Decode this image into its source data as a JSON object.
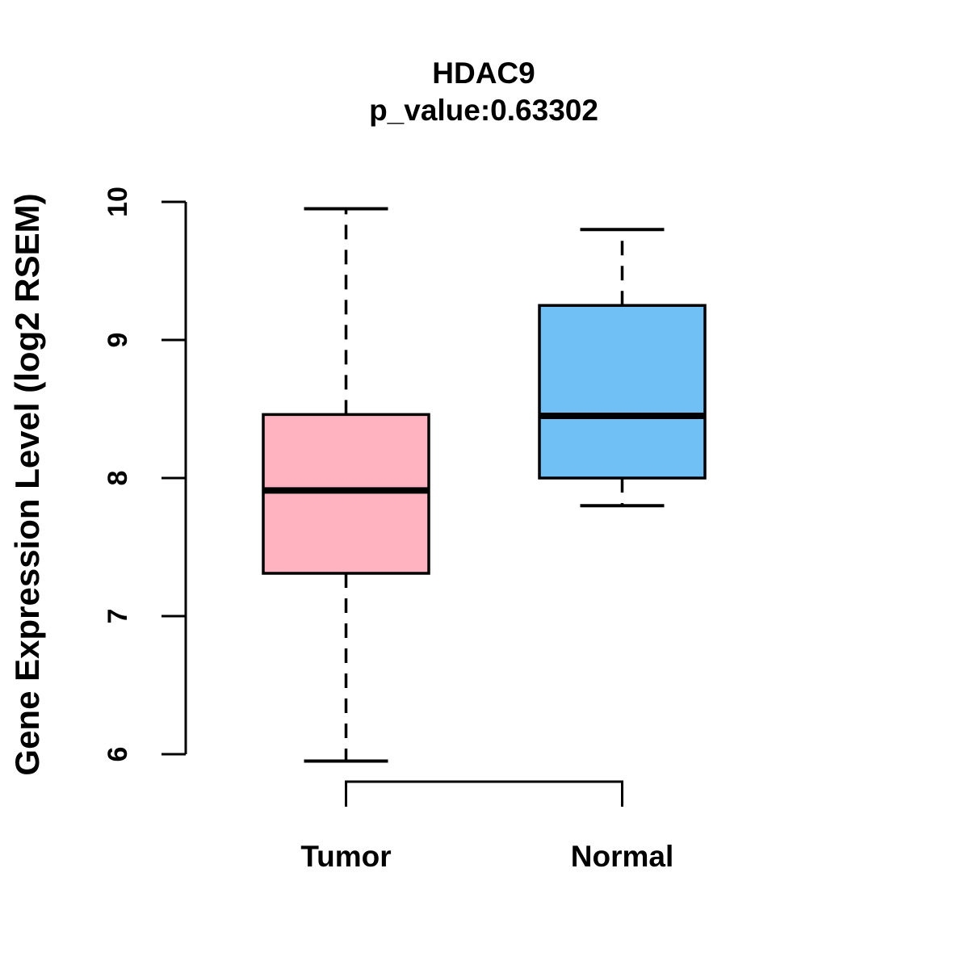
{
  "page": {
    "background": "#ffffff",
    "text_color": "#000000"
  },
  "chart_data": {
    "type": "box",
    "title": "HDAC9",
    "subtitle": "p_value:0.63302",
    "ylabel": "Gene Expression Level (log2 RSEM)",
    "xlabel": "",
    "categories": [
      "Tumor",
      "Normal"
    ],
    "ylim": [
      6,
      10
    ],
    "yticks": [
      6,
      7,
      8,
      9,
      10
    ],
    "grid": false,
    "legend": "none",
    "box_border_color": "#000000",
    "whisker_style": "dashed",
    "series": [
      {
        "name": "Tumor",
        "color": "#ffb3c1",
        "whisker_low": 5.95,
        "q1": 7.31,
        "median": 7.91,
        "q3": 8.46,
        "whisker_high": 9.95
      },
      {
        "name": "Normal",
        "color": "#70bff5",
        "whisker_low": 7.8,
        "q1": 8.0,
        "median": 8.45,
        "q3": 9.25,
        "whisker_high": 9.8
      }
    ],
    "annotations": {
      "comparison_bracket_between": [
        "Tumor",
        "Normal"
      ]
    }
  }
}
